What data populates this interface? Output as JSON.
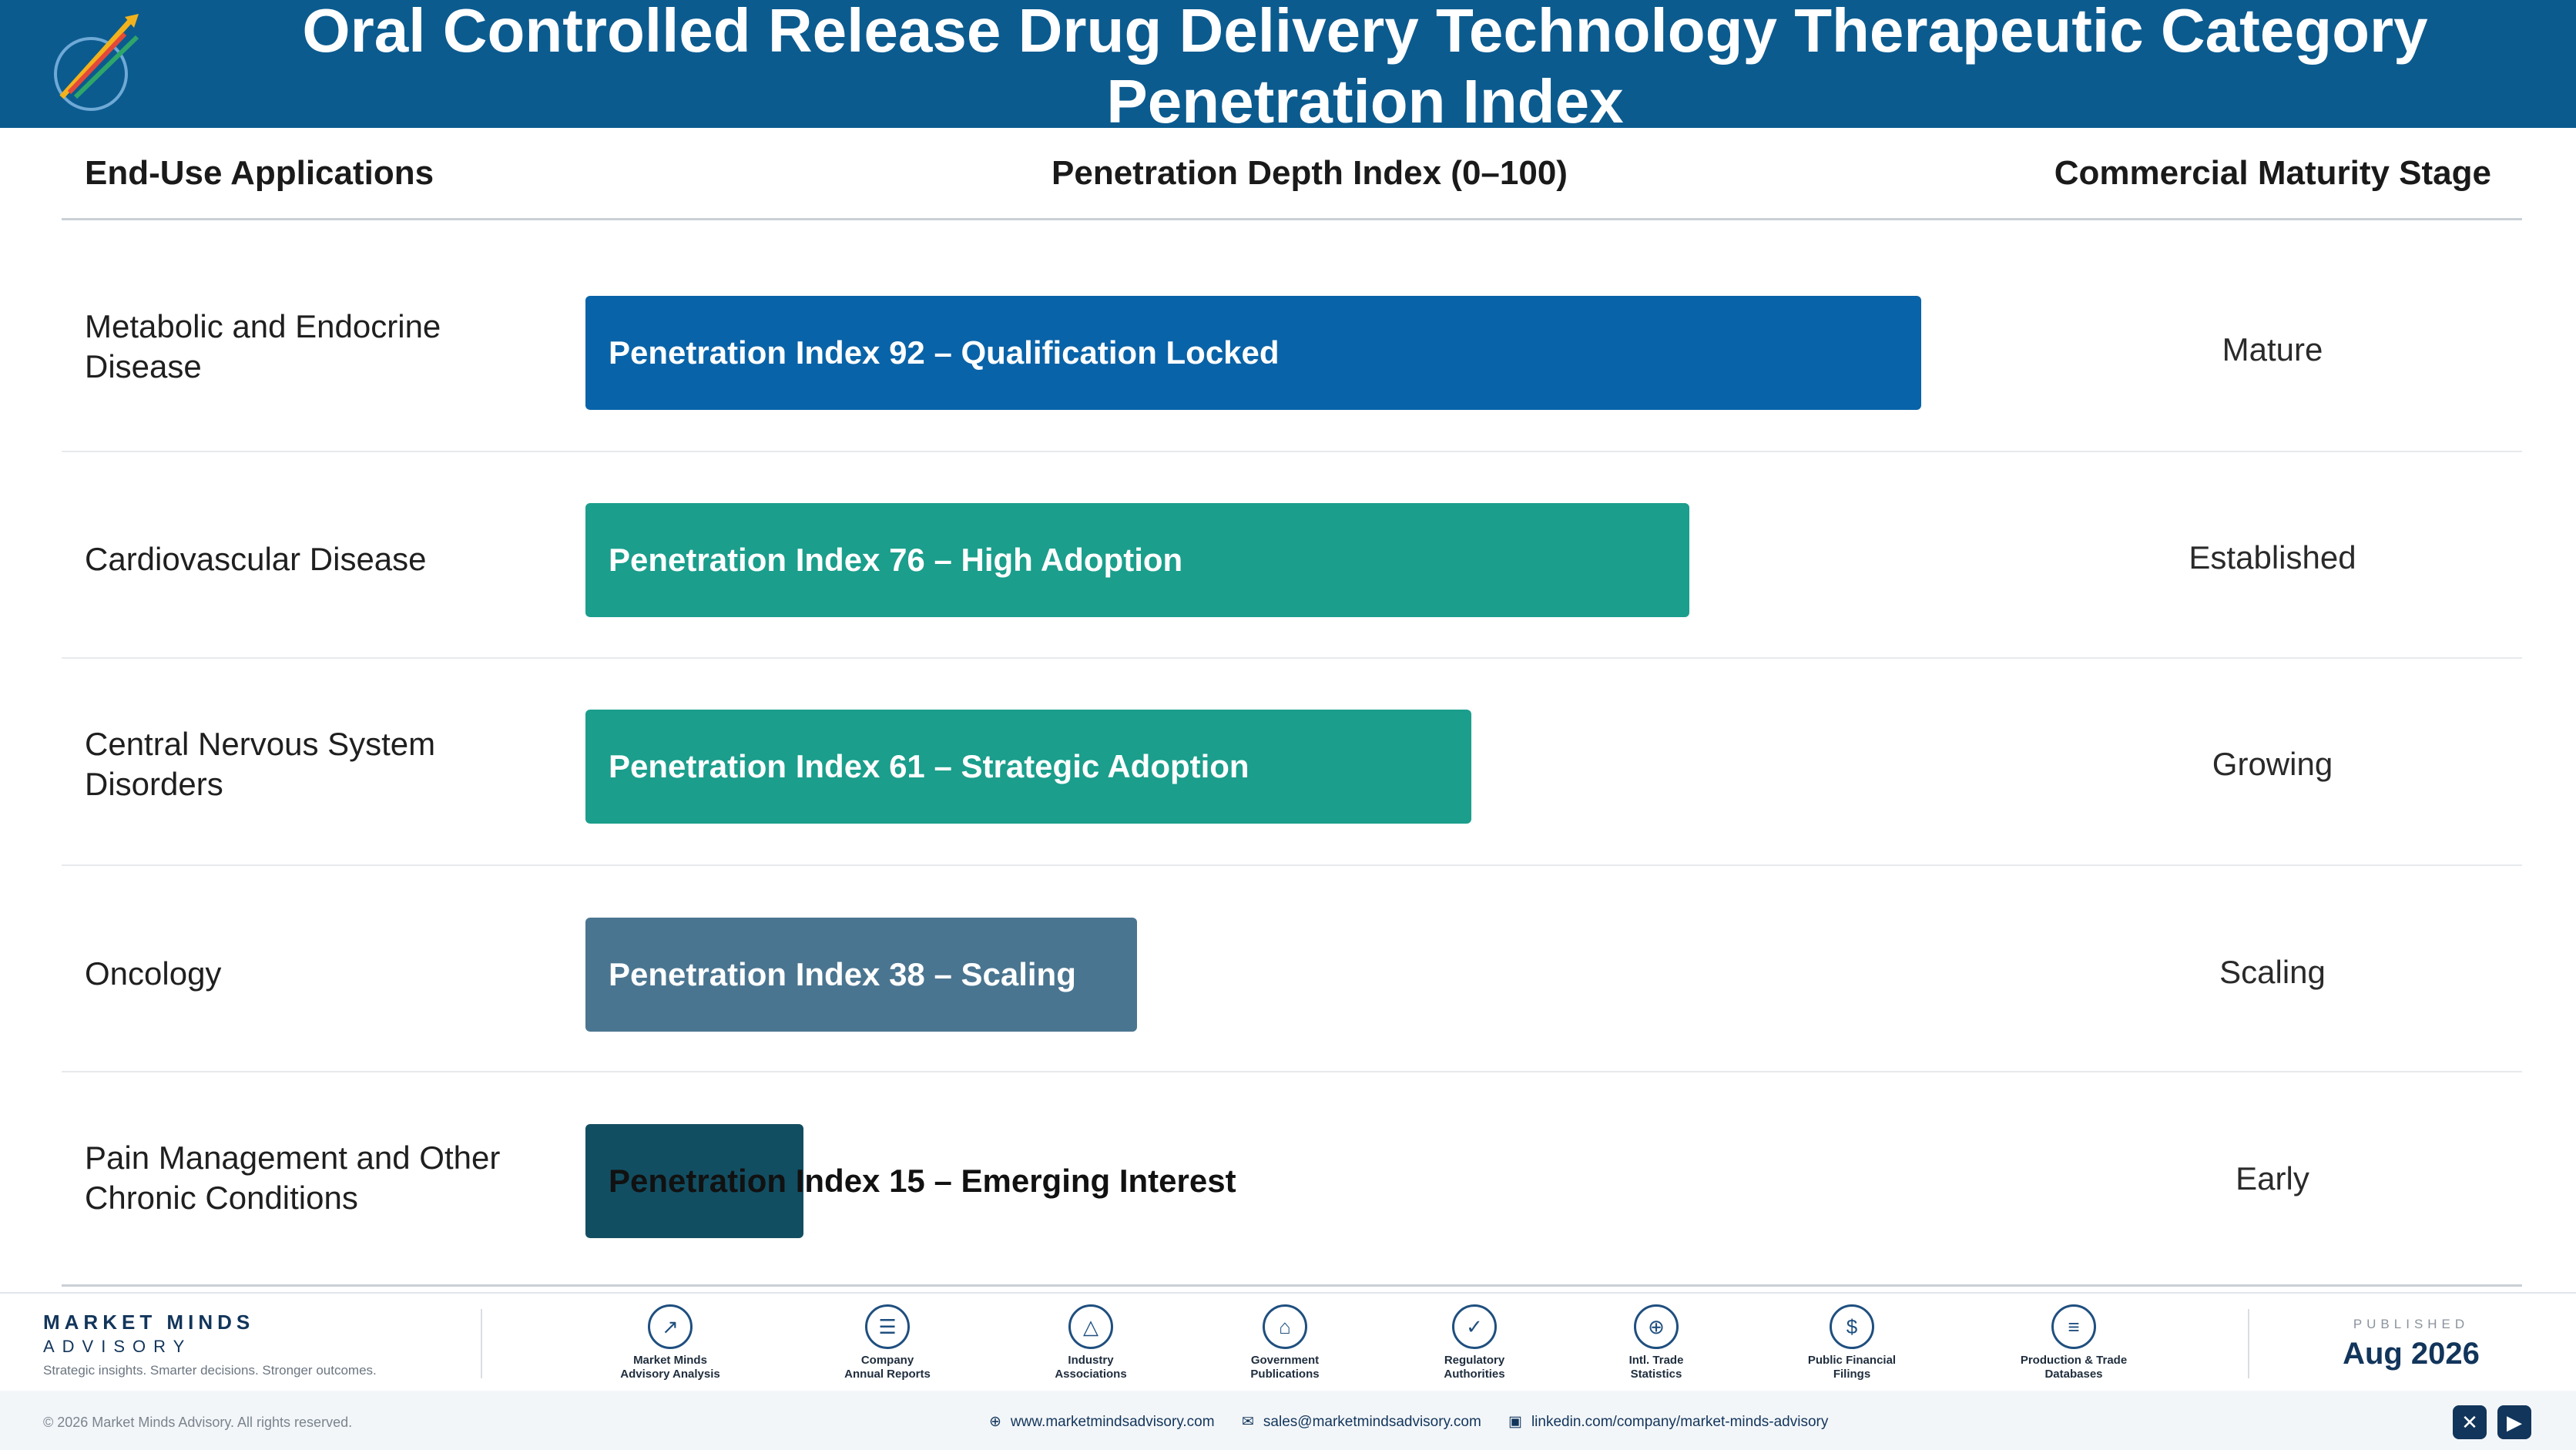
{
  "header": {
    "title": "Oral Controlled Release Drug Delivery Technology Therapeutic Category Penetration Index"
  },
  "columns": {
    "app": "End-Use Applications",
    "depth": "Penetration Depth Index (0–100)",
    "stage": "Commercial Maturity Stage"
  },
  "colors": {
    "header_bg": "#0b5b8f",
    "mature": "#0963a8",
    "established": "#1b9e8c",
    "growing": "#1b9e8c",
    "scaling": "#4a7590",
    "early": "#124e62"
  },
  "chart_data": {
    "type": "bar",
    "orientation": "horizontal",
    "xlim": [
      0,
      100
    ],
    "categories": [
      "Metabolic and Endocrine Disease",
      "Cardiovascular Disease",
      "Central Nervous System Disorders",
      "Oncology",
      "Pain Management and Other Chronic Conditions"
    ],
    "values": [
      92,
      76,
      61,
      38,
      15
    ],
    "bar_labels": [
      "Penetration Index 92 – Qualification Locked",
      "Penetration Index 76 – High Adoption",
      "Penetration Index 61 – Strategic Adoption",
      "Penetration Index 38 – Scaling",
      "Penetration Index 15 – Emerging Interest"
    ],
    "stages": [
      "Mature",
      "Established",
      "Growing",
      "Scaling",
      "Early"
    ],
    "bar_colors": [
      "#0963a8",
      "#1b9e8c",
      "#1b9e8c",
      "#4a7590",
      "#124e62"
    ]
  },
  "footer": {
    "brand_name": "MARKET MINDS",
    "brand_sub": "ADVISORY",
    "tagline": "Strategic insights. Smarter decisions. Stronger outcomes.",
    "sources": [
      {
        "label": "Market Minds\nAdvisory Analysis",
        "icon": "trend-icon"
      },
      {
        "label": "Company\nAnnual Reports",
        "icon": "document-icon"
      },
      {
        "label": "Industry\nAssociations",
        "icon": "network-icon"
      },
      {
        "label": "Government\nPublications",
        "icon": "building-icon"
      },
      {
        "label": "Regulatory\nAuthorities",
        "icon": "shield-icon"
      },
      {
        "label": "Intl. Trade\nStatistics",
        "icon": "globe-icon"
      },
      {
        "label": "Public Financial\nFilings",
        "icon": "coin-icon"
      },
      {
        "label": "Production & Trade\nDatabases",
        "icon": "database-icon"
      }
    ],
    "published_label": "PUBLISHED",
    "published_date": "Aug 2026",
    "copyright": "© 2026 Market Minds Advisory. All rights reserved.",
    "website": "www.marketmindsadvisory.com",
    "email": "sales@marketmindsadvisory.com",
    "linkedin": "linkedin.com/company/market-minds-advisory"
  }
}
